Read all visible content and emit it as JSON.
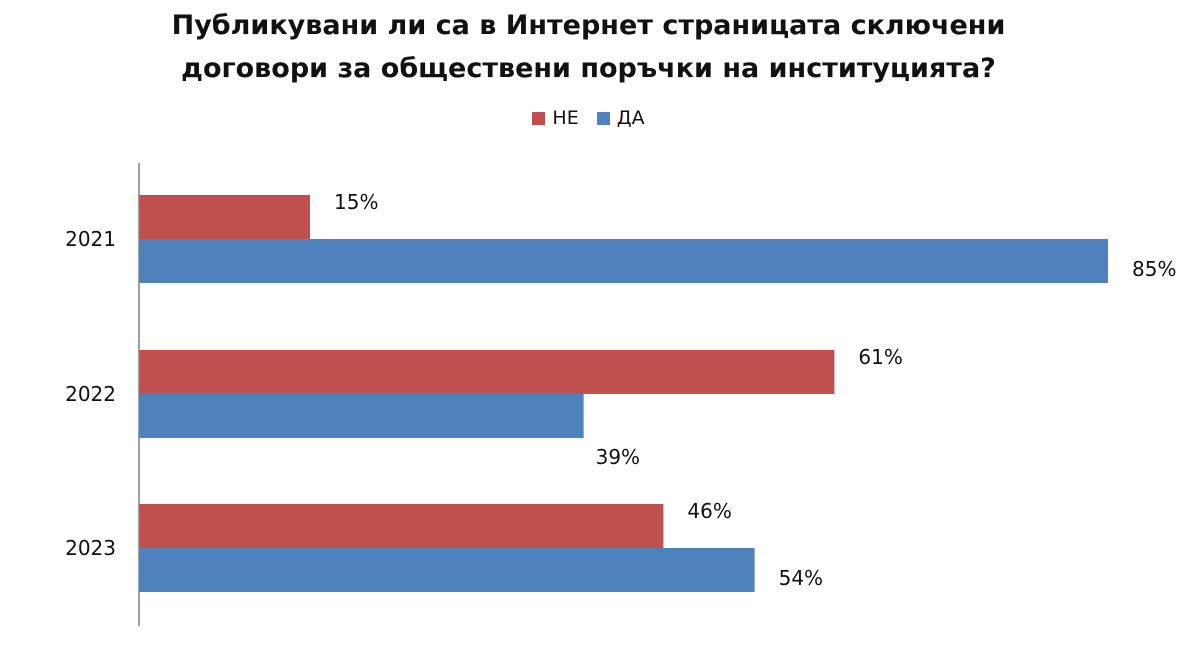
{
  "chart_data": {
    "type": "bar",
    "orientation": "horizontal",
    "title_lines": [
      "Публикувани ли са в Интернет страницата сключени",
      "договори за обществени поръчки на институцията?"
    ],
    "categories": [
      "2021",
      "2022",
      "2023"
    ],
    "series": [
      {
        "name": "НЕ",
        "color": "#c0504d",
        "values": [
          15,
          61,
          46
        ],
        "labels": [
          "15%",
          "61%",
          "46%"
        ]
      },
      {
        "name": "ДА",
        "color": "#4f81bd",
        "values": [
          85,
          39,
          54
        ],
        "labels": [
          "85%",
          "39%",
          "54%"
        ]
      }
    ],
    "legend": "top",
    "grid": false,
    "xlim": [
      0,
      100
    ]
  }
}
